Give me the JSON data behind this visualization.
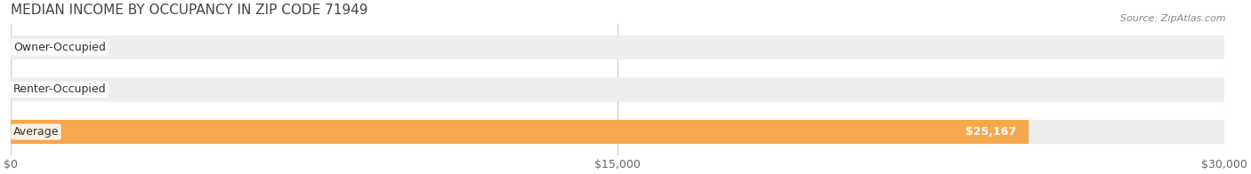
{
  "title": "MEDIAN INCOME BY OCCUPANCY IN ZIP CODE 71949",
  "source": "Source: ZipAtlas.com",
  "categories": [
    "Owner-Occupied",
    "Renter-Occupied",
    "Average"
  ],
  "values": [
    0,
    0,
    25167
  ],
  "bar_colors": [
    "#7ecfcf",
    "#c4a8d4",
    "#f5a84e"
  ],
  "bar_bg_color": "#eeeeee",
  "xlim": [
    0,
    30000
  ],
  "xticks": [
    0,
    15000,
    30000
  ],
  "xtick_labels": [
    "$0",
    "$15,000",
    "$30,000"
  ],
  "title_fontsize": 11,
  "title_color": "#555555",
  "label_fontsize": 9,
  "tick_fontsize": 9,
  "bar_height": 0.55,
  "bg_color": "#ffffff",
  "value_label_color_inside": "#ffffff",
  "value_label_color_outside": "#888888"
}
